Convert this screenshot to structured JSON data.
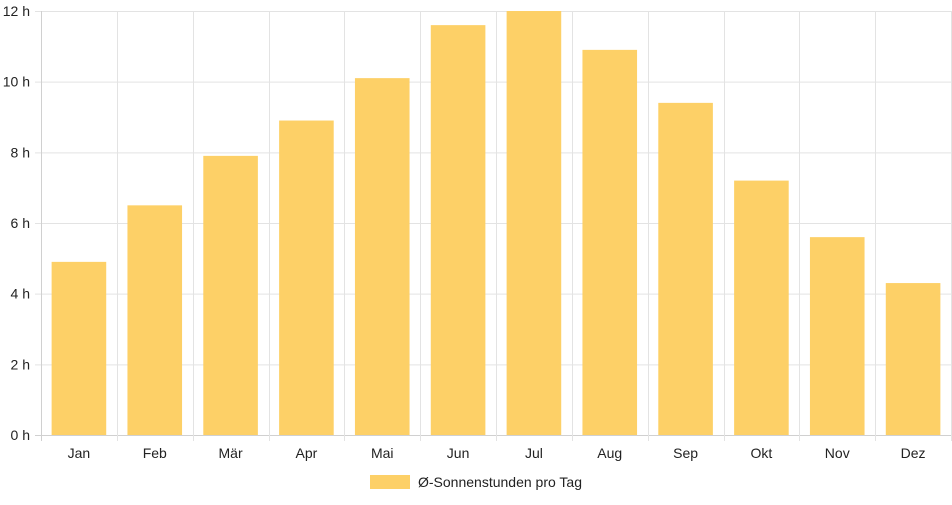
{
  "chart_data": {
    "type": "bar",
    "categories": [
      "Jan",
      "Feb",
      "Mär",
      "Apr",
      "Mai",
      "Jun",
      "Jul",
      "Aug",
      "Sep",
      "Okt",
      "Nov",
      "Dez"
    ],
    "series": [
      {
        "name": "Ø-Sonnenstunden pro Tag",
        "values": [
          4.9,
          6.5,
          7.9,
          8.9,
          10.1,
          11.6,
          12.0,
          10.9,
          9.4,
          7.2,
          5.6,
          4.3
        ],
        "color": "#fdd067"
      }
    ],
    "yunit": "h",
    "ylim": [
      0,
      12
    ],
    "yticks": [
      0,
      2,
      4,
      6,
      8,
      10,
      12
    ],
    "grid": true,
    "legend_position": "bottom"
  }
}
